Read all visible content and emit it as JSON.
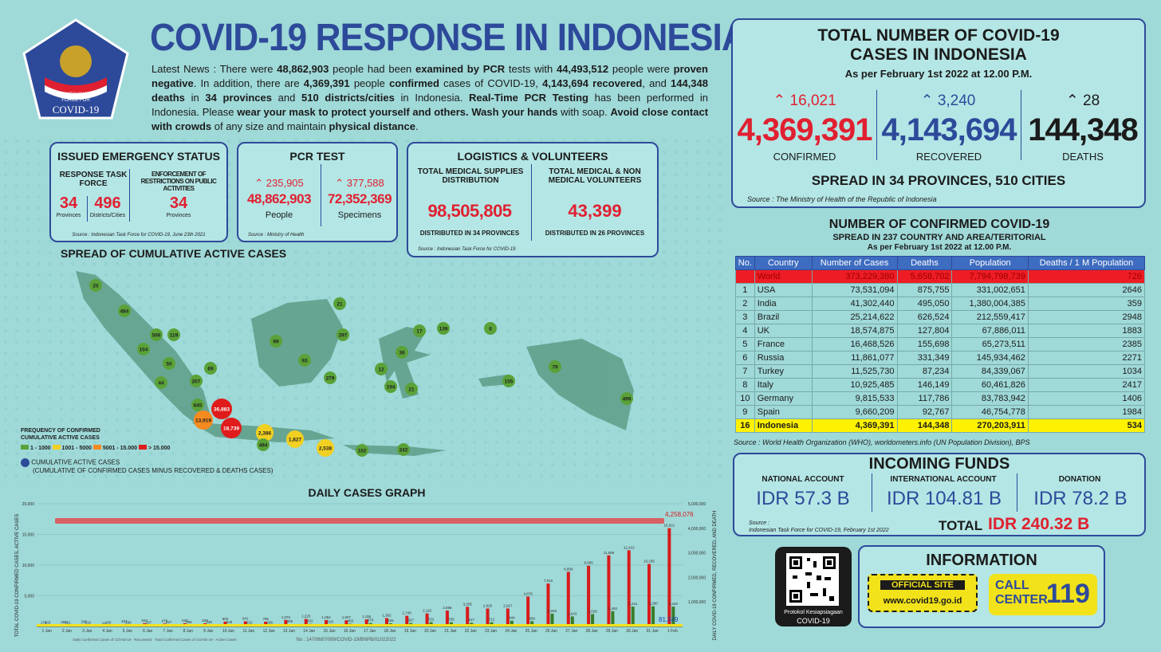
{
  "header": {
    "title": "COVID-19 RESPONSE IN INDONESIA",
    "logo_text": [
      "INDONESIAN TASK",
      "FORCE FOR",
      "COVID-19"
    ]
  },
  "news": {
    "html_parts": [
      "Latest News : There were ",
      "48,862,903",
      " people had been ",
      "examined by PCR",
      " tests with ",
      "44,493,512",
      " people were ",
      "proven negative",
      ". In addition, there are ",
      "4,369,391",
      " people ",
      "confirmed",
      " cases of COVID-19, ",
      "4,143,694 recovered",
      ", and ",
      "144,348 deaths",
      " in ",
      "34 provinces",
      " and ",
      "510 districts/cities",
      " in Indonesia. ",
      "Real-Time PCR Testing",
      " has been performed in Indonesia. Please ",
      "wear your mask to protect yourself and others. Wash your hands",
      " with soap. ",
      "Avoid close contact with crowds",
      " of any size and maintain ",
      "physical distance",
      "."
    ]
  },
  "emergency": {
    "title": "ISSUED EMERGENCY STATUS",
    "col1": "RESPONSE TASK FORCE",
    "col2": "ENFORCEMENT OF RESTRICTIONS ON PUBLIC ACTIVITIES",
    "v1": "34",
    "l1": "Provinces",
    "v2": "496",
    "l2": "Districts/Cities",
    "v3": "34",
    "l3": "Provinces",
    "source": "Source : Indonesian Task Force for COVID-19, June 23th 2021"
  },
  "pcr": {
    "title": "PCR TEST",
    "inc1": "235,905",
    "inc2": "377,588",
    "v1": "48,862,903",
    "l1": "People",
    "v2": "72,352,369",
    "l2": "Specimens",
    "source": "Source : Ministry of Health"
  },
  "logistics": {
    "title": "LOGISTICS & VOLUNTEERS",
    "h1": "TOTAL MEDICAL SUPPLIES DISTRIBUTION",
    "h2": "TOTAL MEDICAL & NON MEDICAL VOLUNTEERS",
    "v1": "98,505,805",
    "v2": "43,399",
    "d1": "DISTRIBUTED IN 34 PROVINCES",
    "d2": "DISTRIBUTED IN 26 PROVINCES",
    "source": "Source : Indonesian Task Force for COVID-19"
  },
  "total": {
    "title1": "TOTAL NUMBER OF COVID-19",
    "title2": "CASES IN INDONESIA",
    "date": "As per February 1st 2022 at 12.00 P.M.",
    "inc_conf": "16,021",
    "inc_rec": "3,240",
    "inc_death": "28",
    "confirmed": "4,369,391",
    "recovered": "4,143,694",
    "deaths": "144,348",
    "l_conf": "CONFIRMED",
    "l_rec": "RECOVERED",
    "l_death": "DEATHS",
    "spread": "SPREAD IN 34 PROVINCES, 510 CITIES",
    "source": "Source : The Ministry of Health of the Republic of Indonesia"
  },
  "world": {
    "title": "NUMBER OF CONFIRMED COVID-19",
    "sub": "SPREAD IN 237 COUNTRY AND AREA/TERITORIAL",
    "date": "As per February 1st 2022 at 12.00 P.M.",
    "headers": [
      "No.",
      "Country",
      "Number of Cases",
      "Deaths",
      "Population",
      "Deaths / 1 M Population"
    ],
    "rows": [
      [
        "",
        "World",
        "373,229,380",
        "5,658,702",
        "7,794,798,739",
        "726"
      ],
      [
        "1",
        "USA",
        "73,531,094",
        "875,755",
        "331,002,651",
        "2646"
      ],
      [
        "2",
        "India",
        "41,302,440",
        "495,050",
        "1,380,004,385",
        "359"
      ],
      [
        "3",
        "Brazil",
        "25,214,622",
        "626,524",
        "212,559,417",
        "2948"
      ],
      [
        "4",
        "UK",
        "18,574,875",
        "127,804",
        "67,886,011",
        "1883"
      ],
      [
        "5",
        "France",
        "16,468,526",
        "155,698",
        "65,273,511",
        "2385"
      ],
      [
        "6",
        "Russia",
        "11,861,077",
        "331,349",
        "145,934,462",
        "2271"
      ],
      [
        "7",
        "Turkey",
        "11,525,730",
        "87,234",
        "84,339,067",
        "1034"
      ],
      [
        "8",
        "Italy",
        "10,925,485",
        "146,149",
        "60,461,826",
        "2417"
      ],
      [
        "10",
        "Germany",
        "9,815,533",
        "117,786",
        "83,783,942",
        "1406"
      ],
      [
        "9",
        "Spain",
        "9,660,209",
        "92,767",
        "46,754,778",
        "1984"
      ],
      [
        "16",
        "Indonesia",
        "4,369,391",
        "144,348",
        "270,203,911",
        "534"
      ]
    ],
    "source": "Source : World Health Organization (WHO), worldometers.info (UN Population Division), BPS"
  },
  "funds": {
    "title": "INCOMING FUNDS",
    "a1": "NATIONAL ACCOUNT",
    "a2": "INTERNATIONAL ACCOUNT",
    "a3": "DONATION",
    "v1": "IDR 57.3 B",
    "v2": "IDR 104.81 B",
    "v3": "IDR 78.2 B",
    "total_label": "TOTAL",
    "total": "IDR 240.32 B",
    "source1": "Source :",
    "source2": "Indonesian Task Force for COVID-19, February 1st 2022"
  },
  "info": {
    "title": "INFORMATION",
    "qr_caption1": "Protokol Kesiapsiagaan",
    "qr_caption2": "COVID-19",
    "site_label": "OFFICIAL SITE",
    "site": "www.covid19.go.id",
    "call1": "CALL",
    "call2": "CENTER",
    "call_num": "119"
  },
  "map": {
    "title": "SPREAD OF CUMULATIVE ACTIVE CASES",
    "legend_title1": "FREQUENCY OF CONFIRMED",
    "legend_title2": "CUMULATIVE ACTIVE CASES",
    "legend": [
      "1 - 1000",
      "1001 - 5000",
      "5001 - 15.000",
      "> 15.000"
    ],
    "legend2": "CUMULATIVE ACTIVE CASES",
    "legend3": "(CUMULATIVE OF CONFIRMED CASES MINUS RECOVERED & DEATHS CASES)",
    "points": [
      [
        "25",
        "g"
      ],
      [
        "484",
        "g"
      ],
      [
        "506",
        "g"
      ],
      [
        "119",
        "g"
      ],
      [
        "104",
        "g"
      ],
      [
        "50",
        "g"
      ],
      [
        "69",
        "g"
      ],
      [
        "44",
        "g"
      ],
      [
        "207",
        "g"
      ],
      [
        "645",
        "g"
      ],
      [
        "13,919",
        "o"
      ],
      [
        "36,883",
        "r"
      ],
      [
        "18,739",
        "r"
      ],
      [
        "2,386",
        "y"
      ],
      [
        "494",
        "g"
      ],
      [
        "1,827",
        "y"
      ],
      [
        "2,538",
        "y"
      ],
      [
        "102",
        "g"
      ],
      [
        "242",
        "g"
      ],
      [
        "99",
        "g"
      ],
      [
        "21",
        "g"
      ],
      [
        "297",
        "g"
      ],
      [
        "93",
        "g"
      ],
      [
        "279",
        "g"
      ],
      [
        "17",
        "g"
      ],
      [
        "139",
        "g"
      ],
      [
        "6",
        "g"
      ],
      [
        "36",
        "g"
      ],
      [
        "12",
        "g"
      ],
      [
        "194",
        "g"
      ],
      [
        "21",
        "g"
      ],
      [
        "155",
        "g"
      ],
      [
        "79",
        "g"
      ],
      [
        "499",
        "g"
      ]
    ]
  },
  "chart_data": {
    "type": "bar",
    "title": "DAILY CASES GRAPH",
    "ylabel": "TOTAL COVID-19 CONFIRMED CASES, ACTIVE CASES",
    "y2label": "DAILY COVID-19 CONFIRMED, RECOVERED, AND DEATH",
    "ylim": [
      0,
      20000
    ],
    "yticks": [
      "20,000",
      "15,000",
      "10,000",
      "5,000"
    ],
    "y2ticks": [
      "5,000,000",
      "4,000,000",
      "3,000,000",
      "2,000,000",
      "1,000,000"
    ],
    "categories": [
      "1 Jan",
      "2 Jan",
      "3 Jan",
      "4 Jan",
      "5 Jan",
      "6 Jan",
      "7 Jan",
      "8 Jan",
      "9 Jan",
      "10 Jan",
      "11 Jan",
      "12 Jan",
      "13 Jan",
      "14 Jan",
      "15 Jan",
      "16 Jan",
      "17 Jan",
      "18 Jan",
      "19 Jan",
      "20 Jan",
      "21 Jan",
      "22 Jan",
      "23 Jan",
      "24 Jan",
      "25 Jan",
      "26 Jan",
      "27 Jan",
      "28 Jan",
      "29 Jan",
      "30 Jan",
      "31 Jan",
      "1 Feb"
    ],
    "series": [
      {
        "name": "Daily Confirmed Cases of COVID-19",
        "color": "#d81b1b",
        "values": [
          174,
          265,
          299,
          92,
          404,
          533,
          479,
          528,
          529,
          802,
          841,
          786,
          1070,
          1225,
          1054,
          1007,
          1155,
          1362,
          1745,
          2116,
          2598,
          3205,
          2925,
          2927,
          4878,
          7010,
          8899,
          9905,
          11588,
          12422,
          10185,
          16021
        ]
      },
      {
        "name": "Recovered",
        "color": "#3a7d2a",
        "values": [
          203,
          181,
          216,
          185,
          188,
          207,
          247,
          258,
          239,
          228,
          215,
          208,
          390,
          432,
          318,
          450,
          570,
          526,
          567,
          722,
          705,
          617,
          712,
          944,
          869,
          2092,
          1643,
          2028,
          2492,
          3241,
          3290,
          3240
        ]
      },
      {
        "name": "Deaths",
        "color": "#333333",
        "values": [
          7,
          4,
          6,
          2,
          5,
          4,
          6,
          6,
          5,
          6,
          4,
          6,
          6,
          7,
          7,
          5,
          5,
          5,
          7,
          7,
          5,
          8,
          4,
          7,
          7,
          10,
          7,
          7,
          17,
          18,
          17,
          28
        ]
      }
    ],
    "total_label": "4,258,076",
    "active_label": "81,349",
    "footer": "No : 147/0687/099/COVID-19/BNPB/01022022",
    "legend": [
      "Daily Confirmed Cases of COVID-19",
      "Recovered",
      "Total Confirmed Cases of COVID-19",
      "Active Cases"
    ]
  }
}
